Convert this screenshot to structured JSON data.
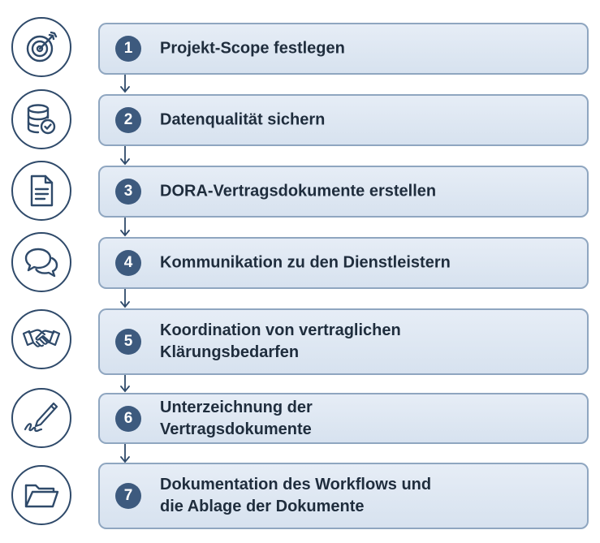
{
  "steps": [
    {
      "number": "1",
      "label": "Projekt-Scope festlegen",
      "icon": "target-icon"
    },
    {
      "number": "2",
      "label": "Datenqualität sichern",
      "icon": "database-check-icon"
    },
    {
      "number": "3",
      "label": "DORA-Vertragsdokumente erstellen",
      "icon": "document-icon"
    },
    {
      "number": "4",
      "label": "Kommunikation zu den Dienstleistern",
      "icon": "speech-bubbles-icon"
    },
    {
      "number": "5",
      "label": "Koordination von vertraglichen\nKlärungsbedarfen",
      "icon": "handshake-icon"
    },
    {
      "number": "6",
      "label": "Unterzeichnung der\nVertragsdokumente",
      "icon": "pen-signature-icon"
    },
    {
      "number": "7",
      "label": "Dokumentation des Workflows und\ndie Ablage der Dokumente",
      "icon": "folder-icon"
    }
  ],
  "colors": {
    "icon_stroke": "#2f4a6a",
    "box_fill": "#dde6f1",
    "box_border": "#8fa6c0",
    "number_badge": "#3d5a7e",
    "text": "#1f2d3d"
  }
}
